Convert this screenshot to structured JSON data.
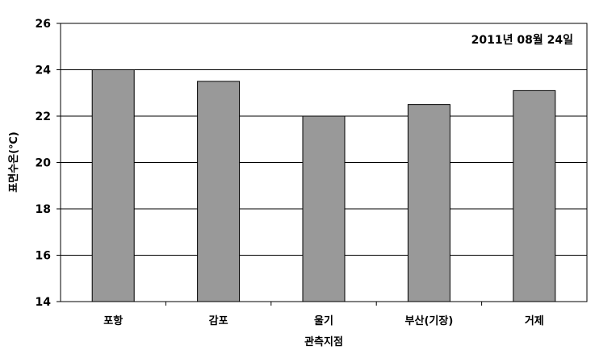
{
  "chart_data": {
    "type": "bar",
    "title": "",
    "annotation": "2011년 08월 24일",
    "xlabel": "관측지점",
    "ylabel": "표면수온(℃)",
    "categories": [
      "포항",
      "감포",
      "울기",
      "부산(기장)",
      "거제"
    ],
    "values": [
      24.0,
      23.5,
      22.0,
      22.5,
      23.1
    ],
    "ylim": [
      14,
      26
    ],
    "yticks": [
      14,
      16,
      18,
      20,
      22,
      24,
      26
    ],
    "grid": "horizontal",
    "bar_color": "#999999",
    "legend": "none"
  }
}
